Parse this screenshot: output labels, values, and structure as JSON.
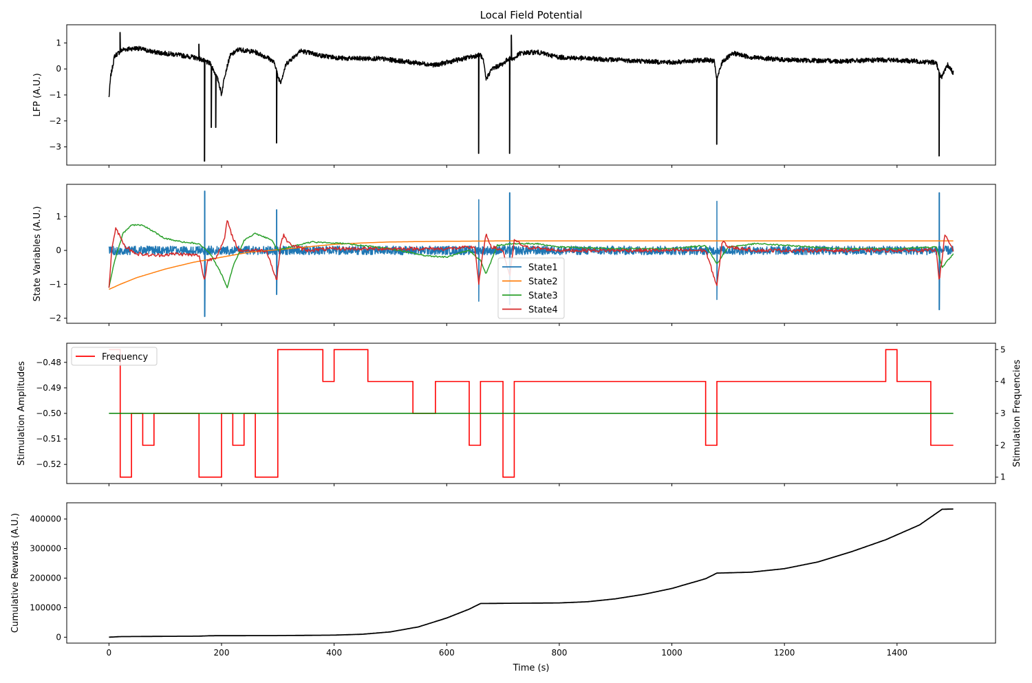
{
  "figure_title": "Local Field Potential",
  "x_label": "Time (s)",
  "x_ticks": [
    0,
    200,
    400,
    600,
    800,
    1000,
    1200,
    1400
  ],
  "chart_data": [
    {
      "type": "line",
      "title": "Local Field Potential",
      "ylabel": "LFP (A.U.)",
      "xlim": [
        -75,
        1575
      ],
      "ylim": [
        -3.7,
        1.7
      ],
      "yticks": [
        1,
        0,
        -1,
        -2,
        -3
      ],
      "ytick_labels": [
        "1",
        "0",
        "−1",
        "−2",
        "−3"
      ],
      "color": "#000000",
      "noise": 0.09,
      "baseline": [
        [
          0,
          -1.1
        ],
        [
          3,
          -0.3
        ],
        [
          10,
          0.5
        ],
        [
          25,
          0.75
        ],
        [
          50,
          0.8
        ],
        [
          80,
          0.65
        ],
        [
          120,
          0.55
        ],
        [
          150,
          0.45
        ],
        [
          160,
          0.4
        ],
        [
          170,
          0.3
        ],
        [
          180,
          0.2
        ],
        [
          185,
          0.0
        ],
        [
          195,
          -0.5
        ],
        [
          200,
          -1.0
        ],
        [
          205,
          -0.3
        ],
        [
          215,
          0.5
        ],
        [
          230,
          0.75
        ],
        [
          260,
          0.65
        ],
        [
          285,
          0.4
        ],
        [
          295,
          0.2
        ],
        [
          300,
          -0.3
        ],
        [
          305,
          -0.5
        ],
        [
          315,
          0.2
        ],
        [
          340,
          0.7
        ],
        [
          380,
          0.5
        ],
        [
          420,
          0.4
        ],
        [
          480,
          0.4
        ],
        [
          540,
          0.25
        ],
        [
          580,
          0.15
        ],
        [
          620,
          0.35
        ],
        [
          660,
          0.55
        ],
        [
          665,
          0.3
        ],
        [
          670,
          -0.4
        ],
        [
          680,
          0.0
        ],
        [
          700,
          0.2
        ],
        [
          710,
          0.4
        ],
        [
          720,
          0.4
        ],
        [
          730,
          0.6
        ],
        [
          760,
          0.65
        ],
        [
          800,
          0.45
        ],
        [
          900,
          0.35
        ],
        [
          1000,
          0.25
        ],
        [
          1060,
          0.35
        ],
        [
          1075,
          0.3
        ],
        [
          1080,
          -0.4
        ],
        [
          1090,
          0.3
        ],
        [
          1110,
          0.6
        ],
        [
          1140,
          0.45
        ],
        [
          1200,
          0.35
        ],
        [
          1300,
          0.3
        ],
        [
          1380,
          0.35
        ],
        [
          1430,
          0.3
        ],
        [
          1470,
          0.25
        ],
        [
          1475,
          -0.2
        ],
        [
          1480,
          -0.3
        ],
        [
          1490,
          0.15
        ],
        [
          1500,
          -0.15
        ]
      ],
      "spikes": [
        [
          170,
          -3.55
        ],
        [
          182,
          -2.25
        ],
        [
          190,
          -2.25
        ],
        [
          298,
          -2.85
        ],
        [
          657,
          -3.25
        ],
        [
          712,
          -3.25
        ],
        [
          1080,
          -2.9
        ],
        [
          1475,
          -3.35
        ]
      ],
      "upspikes": [
        [
          20,
          1.4
        ],
        [
          715,
          1.3
        ],
        [
          160,
          0.95
        ]
      ]
    },
    {
      "type": "line",
      "ylabel": "State Variables (A.U.)",
      "xlim": [
        -75,
        1575
      ],
      "ylim": [
        -2.15,
        1.95
      ],
      "yticks": [
        1,
        0,
        -1,
        -2
      ],
      "ytick_labels": [
        "1",
        "0",
        "−1",
        "−2"
      ],
      "legend": {
        "loc": "lower center"
      },
      "series": [
        {
          "name": "State1",
          "color": "#1f77b4",
          "noise": 0.13,
          "points": [
            [
              0,
              0.0
            ],
            [
              1500,
              0.0
            ]
          ],
          "spikes": [
            [
              170,
              1.75,
              -1.95
            ],
            [
              298,
              1.2,
              -1.3
            ],
            [
              657,
              1.5,
              -1.5
            ],
            [
              712,
              1.7,
              -1.6
            ],
            [
              1080,
              1.45,
              -1.45
            ],
            [
              1475,
              1.7,
              -1.75
            ]
          ]
        },
        {
          "name": "State2",
          "color": "#ff7f0e",
          "noise": 0,
          "points": [
            [
              0,
              -1.15
            ],
            [
              20,
              -1.0
            ],
            [
              50,
              -0.8
            ],
            [
              100,
              -0.55
            ],
            [
              150,
              -0.35
            ],
            [
              200,
              -0.2
            ],
            [
              250,
              -0.05
            ],
            [
              300,
              0.02
            ],
            [
              350,
              0.1
            ],
            [
              400,
              0.18
            ],
            [
              450,
              0.22
            ],
            [
              500,
              0.25
            ],
            [
              600,
              0.27
            ],
            [
              700,
              0.28
            ],
            [
              800,
              0.28
            ],
            [
              1000,
              0.28
            ],
            [
              1200,
              0.28
            ],
            [
              1500,
              0.28
            ]
          ]
        },
        {
          "name": "State3",
          "color": "#2ca02c",
          "noise": 0.02,
          "points": [
            [
              0,
              -1.1
            ],
            [
              10,
              -0.3
            ],
            [
              25,
              0.5
            ],
            [
              40,
              0.75
            ],
            [
              60,
              0.75
            ],
            [
              80,
              0.55
            ],
            [
              100,
              0.35
            ],
            [
              130,
              0.25
            ],
            [
              160,
              0.2
            ],
            [
              180,
              -0.1
            ],
            [
              200,
              -0.7
            ],
            [
              210,
              -1.1
            ],
            [
              220,
              -0.5
            ],
            [
              240,
              0.3
            ],
            [
              260,
              0.5
            ],
            [
              290,
              0.3
            ],
            [
              300,
              0.0
            ],
            [
              320,
              0.1
            ],
            [
              360,
              0.25
            ],
            [
              420,
              0.2
            ],
            [
              500,
              0.05
            ],
            [
              560,
              -0.15
            ],
            [
              600,
              -0.2
            ],
            [
              640,
              0.0
            ],
            [
              660,
              -0.3
            ],
            [
              670,
              -0.7
            ],
            [
              690,
              0.15
            ],
            [
              720,
              0.2
            ],
            [
              760,
              0.2
            ],
            [
              800,
              0.1
            ],
            [
              900,
              0.05
            ],
            [
              1000,
              0.05
            ],
            [
              1060,
              0.15
            ],
            [
              1080,
              -0.4
            ],
            [
              1100,
              0.1
            ],
            [
              1150,
              0.2
            ],
            [
              1200,
              0.15
            ],
            [
              1300,
              0.05
            ],
            [
              1400,
              0.05
            ],
            [
              1470,
              0.1
            ],
            [
              1480,
              -0.5
            ],
            [
              1500,
              -0.1
            ]
          ]
        },
        {
          "name": "State4",
          "color": "#d62728",
          "noise": 0.05,
          "points": [
            [
              0,
              -1.1
            ],
            [
              5,
              0.0
            ],
            [
              12,
              0.65
            ],
            [
              20,
              0.4
            ],
            [
              30,
              0.1
            ],
            [
              50,
              -0.1
            ],
            [
              80,
              -0.15
            ],
            [
              120,
              -0.1
            ],
            [
              160,
              -0.15
            ],
            [
              170,
              -0.9
            ],
            [
              175,
              -0.3
            ],
            [
              190,
              -0.2
            ],
            [
              205,
              0.3
            ],
            [
              210,
              0.9
            ],
            [
              215,
              0.6
            ],
            [
              230,
              0.0
            ],
            [
              280,
              0.0
            ],
            [
              298,
              -0.9
            ],
            [
              305,
              0.2
            ],
            [
              310,
              0.45
            ],
            [
              320,
              0.2
            ],
            [
              350,
              0.0
            ],
            [
              400,
              0.05
            ],
            [
              500,
              0.05
            ],
            [
              600,
              0.05
            ],
            [
              650,
              0.1
            ],
            [
              657,
              -1.0
            ],
            [
              665,
              0.0
            ],
            [
              670,
              0.45
            ],
            [
              680,
              0.1
            ],
            [
              700,
              0.0
            ],
            [
              712,
              -0.8
            ],
            [
              720,
              0.3
            ],
            [
              740,
              0.1
            ],
            [
              800,
              0.0
            ],
            [
              1000,
              0.0
            ],
            [
              1060,
              0.0
            ],
            [
              1080,
              -1.05
            ],
            [
              1090,
              0.3
            ],
            [
              1100,
              0.1
            ],
            [
              1150,
              0.0
            ],
            [
              1400,
              0.0
            ],
            [
              1470,
              0.0
            ],
            [
              1475,
              -0.9
            ],
            [
              1485,
              0.45
            ],
            [
              1500,
              0.0
            ]
          ]
        }
      ]
    },
    {
      "type": "line",
      "ylabel": "Stimulation Amplitudes",
      "ylabel_right": "Stimulation Frequencies",
      "xlim": [
        -75,
        1575
      ],
      "ylim": [
        -0.5275,
        -0.4725
      ],
      "yticks": [
        -0.48,
        -0.49,
        -0.5,
        -0.51,
        -0.52
      ],
      "ytick_labels": [
        "−0.48",
        "−0.49",
        "−0.50",
        "−0.51",
        "−0.52"
      ],
      "ylim_right": [
        0.8,
        5.2
      ],
      "yticks_right": [
        1,
        2,
        3,
        4,
        5
      ],
      "legend": {
        "loc": "upper left"
      },
      "series": [
        {
          "name": "Frequency",
          "color": "#ff0000",
          "axis": "right",
          "step": true,
          "x": [
            0,
            20,
            40,
            60,
            80,
            100,
            160,
            200,
            220,
            240,
            260,
            300,
            380,
            400,
            460,
            540,
            580,
            640,
            660,
            700,
            720,
            1060,
            1080,
            1380,
            1400,
            1460,
            1500
          ],
          "values": [
            5,
            1,
            3,
            2,
            3,
            3,
            1,
            3,
            2,
            3,
            1,
            5,
            4,
            5,
            4,
            3,
            4,
            2,
            4,
            1,
            4,
            2,
            4,
            5,
            4,
            2,
            2
          ]
        },
        {
          "color": "#008000",
          "axis": "left",
          "x": [
            0,
            1500
          ],
          "values": [
            -0.5,
            -0.5
          ]
        }
      ]
    },
    {
      "type": "line",
      "ylabel": "Cumulative Rewards (A.U.)",
      "xlabel": "Time (s)",
      "xlim": [
        -75,
        1575
      ],
      "ylim": [
        -20000,
        455000
      ],
      "yticks": [
        0,
        100000,
        200000,
        300000,
        400000
      ],
      "ytick_labels": [
        "0",
        "100000",
        "200000",
        "300000",
        "400000"
      ],
      "color": "#000000",
      "noise": 0,
      "points": [
        [
          0,
          0
        ],
        [
          20,
          2000
        ],
        [
          100,
          3000
        ],
        [
          160,
          3500
        ],
        [
          180,
          5000
        ],
        [
          300,
          5500
        ],
        [
          400,
          7000
        ],
        [
          450,
          10000
        ],
        [
          500,
          18000
        ],
        [
          550,
          35000
        ],
        [
          600,
          65000
        ],
        [
          640,
          95000
        ],
        [
          660,
          114000
        ],
        [
          720,
          115000
        ],
        [
          800,
          116000
        ],
        [
          850,
          120000
        ],
        [
          900,
          130000
        ],
        [
          950,
          145000
        ],
        [
          1000,
          165000
        ],
        [
          1060,
          198000
        ],
        [
          1080,
          217000
        ],
        [
          1140,
          220000
        ],
        [
          1200,
          232000
        ],
        [
          1260,
          255000
        ],
        [
          1320,
          290000
        ],
        [
          1380,
          330000
        ],
        [
          1440,
          380000
        ],
        [
          1480,
          433000
        ],
        [
          1500,
          434000
        ]
      ]
    }
  ]
}
